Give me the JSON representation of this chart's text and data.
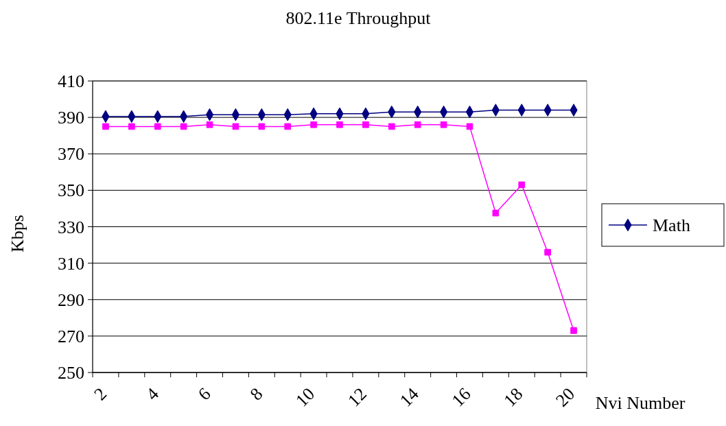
{
  "chart_data": {
    "type": "line",
    "title": "802.11e Throughput",
    "xlabel": "Nvi Number",
    "ylabel": "Kbps",
    "categories": [
      "2",
      null,
      "4",
      null,
      "6",
      null,
      "8",
      null,
      "10",
      null,
      "12",
      null,
      "14",
      null,
      "16",
      null,
      "18",
      null,
      "20"
    ],
    "series": [
      {
        "name": "Math",
        "color": "#000080",
        "marker": "diamond",
        "values": [
          390.5,
          390.5,
          390.5,
          390.5,
          391.5,
          391.5,
          391.5,
          391.5,
          392,
          392,
          392,
          393,
          393,
          393,
          393,
          394,
          394,
          394,
          394
        ]
      },
      {
        "color": "#ff00ff",
        "marker": "square",
        "values": [
          385,
          385,
          385,
          385,
          386,
          385,
          385,
          385,
          386,
          386,
          386,
          385,
          386,
          386,
          385,
          337.5,
          353,
          316,
          273
        ]
      }
    ],
    "ylim": [
      250,
      410
    ],
    "yticks": [
      250,
      270,
      290,
      310,
      330,
      350,
      370,
      390,
      410
    ],
    "grid": "y",
    "legend": "right"
  }
}
